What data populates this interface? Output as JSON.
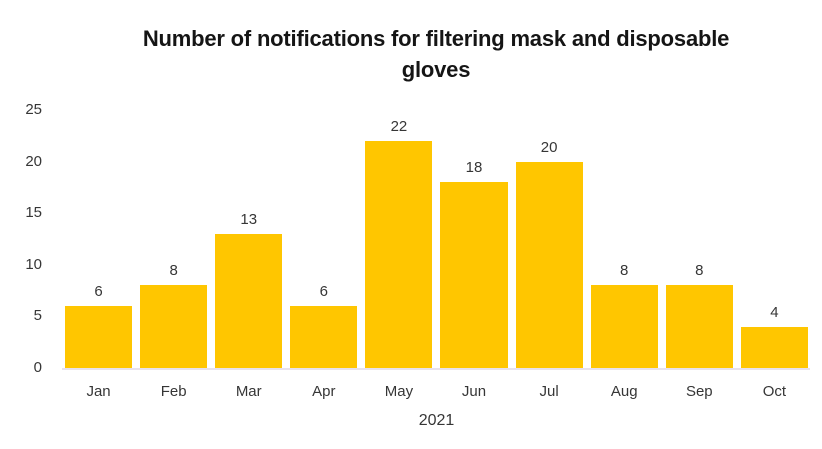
{
  "chart_data": {
    "type": "bar",
    "title": "Number of notifications for filtering mask and disposable gloves",
    "categories": [
      "Jan",
      "Feb",
      "Mar",
      "Apr",
      "May",
      "Jun",
      "Jul",
      "Aug",
      "Sep",
      "Oct"
    ],
    "values": [
      6,
      8,
      13,
      6,
      22,
      18,
      20,
      8,
      8,
      4
    ],
    "data_labels": [
      "6",
      "8",
      "13",
      "6",
      "22",
      "18",
      "20",
      "8",
      "8",
      "4"
    ],
    "xlabel": "2021",
    "ylabel": "",
    "ylim": [
      0,
      25
    ],
    "yticks": [
      0,
      5,
      10,
      15,
      20,
      25
    ],
    "grid": false,
    "legend_position": "none"
  },
  "colors": {
    "bar": "#FFC600",
    "title_text": "#151515",
    "axis_text": "#363636",
    "baseline": "#E8E2EC",
    "background": "#FFFFFF"
  }
}
